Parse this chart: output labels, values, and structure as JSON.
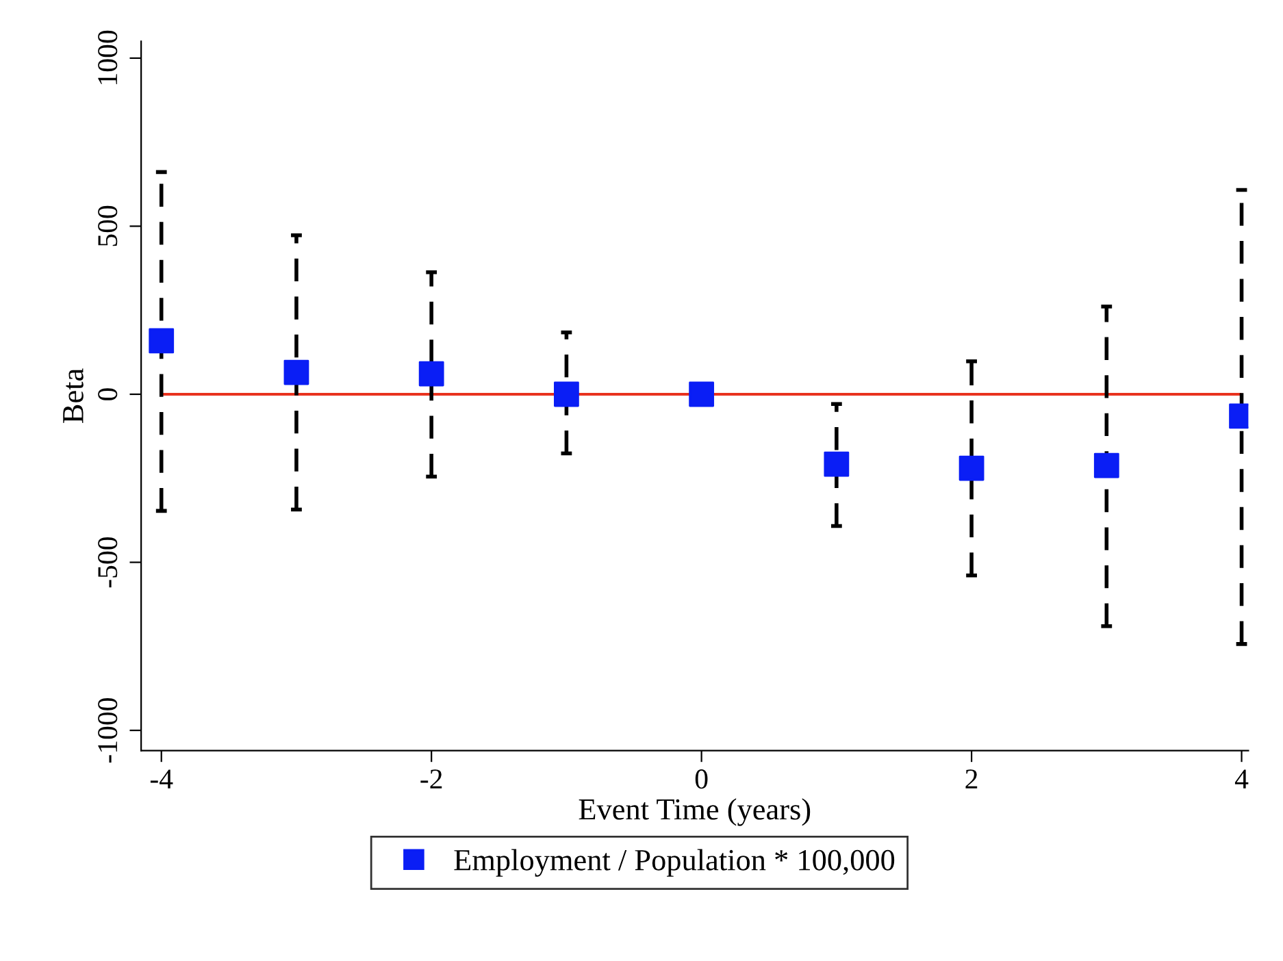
{
  "chart_data": {
    "type": "scatter",
    "xlabel": "Event Time (years)",
    "ylabel": "Beta",
    "x": [
      -4,
      -3,
      -2,
      -1,
      0,
      1,
      2,
      3,
      4
    ],
    "series": [
      {
        "name": "Employment / Population * 100,000",
        "color": "#0a1ef5",
        "values": [
          159,
          65,
          61,
          0,
          0,
          -208,
          -220,
          -212,
          -65
        ],
        "errors": [
          [
            -347,
            661
          ],
          [
            -343,
            473
          ],
          [
            -245,
            363
          ],
          [
            -176,
            184
          ],
          null,
          [
            -392,
            -29
          ],
          [
            -539,
            98
          ],
          [
            -690,
            261
          ],
          [
            -743,
            608
          ]
        ]
      }
    ],
    "xlim": [
      -4.15,
      4.05
    ],
    "ylim": [
      -1060,
      1050
    ],
    "xticks": [
      -4,
      -2,
      0,
      2,
      4
    ],
    "yticks": [
      -1000,
      -500,
      0,
      500,
      1000
    ],
    "ref_lines": [
      {
        "axis": "y",
        "value": 0,
        "color": "#e8321e"
      }
    ],
    "marker": "square",
    "line_style": "dashed",
    "grid": false,
    "legend": "bottom"
  }
}
